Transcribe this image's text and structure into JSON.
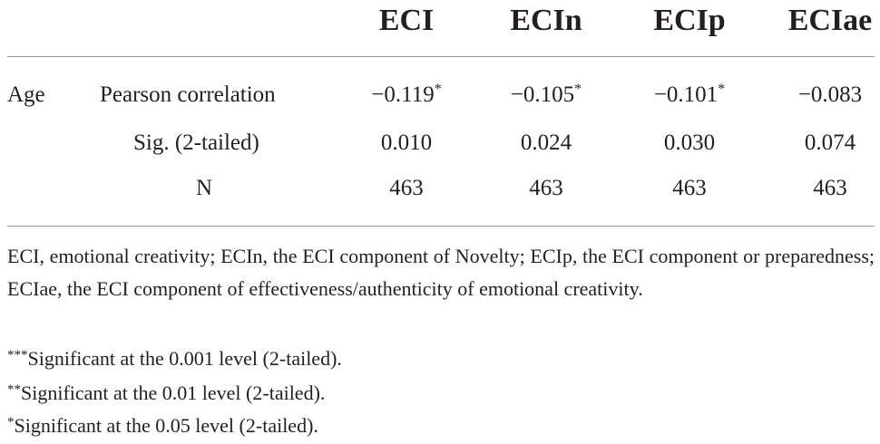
{
  "table": {
    "columns": [
      "ECI",
      "ECIn",
      "ECIp",
      "ECIae"
    ],
    "row_group": "Age",
    "rows": [
      {
        "label": "Pearson correlation",
        "values": [
          "−0.119",
          "−0.105",
          "−0.101",
          "−0.083"
        ],
        "marks": [
          "*",
          "*",
          "*",
          ""
        ]
      },
      {
        "label": "Sig. (2-tailed)",
        "values": [
          "0.010",
          "0.024",
          "0.030",
          "0.074"
        ]
      },
      {
        "label": "N",
        "values": [
          "463",
          "463",
          "463",
          "463"
        ]
      }
    ]
  },
  "notes": {
    "abbreviations": "ECI, emotional creativity; ECIn, the ECI component of Novelty; ECIp, the ECI component or preparedness; ECIae, the ECI component of effectiveness/authenticity of emotional creativity.",
    "significance": [
      {
        "stars": "***",
        "text": "Significant at the 0.001 level (2-tailed)."
      },
      {
        "stars": "**",
        "text": "Significant at the 0.01 level (2-tailed)."
      },
      {
        "stars": "*",
        "text": "Significant at the 0.05 level (2-tailed)."
      }
    ]
  }
}
